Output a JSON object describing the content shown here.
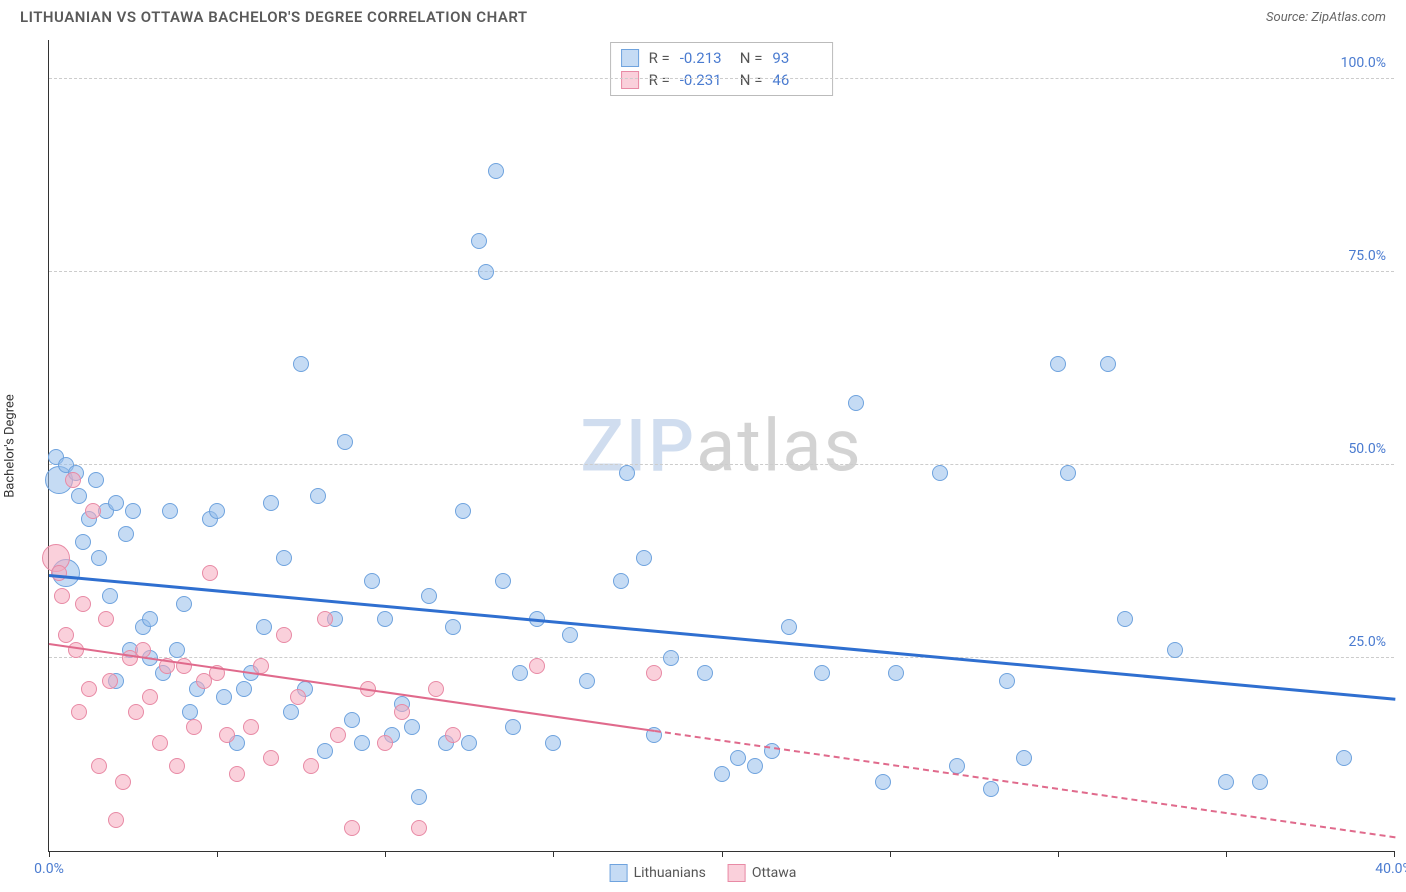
{
  "title": "LITHUANIAN VS OTTAWA BACHELOR'S DEGREE CORRELATION CHART",
  "source": "Source: ZipAtlas.com",
  "ylabel": "Bachelor's Degree",
  "watermark_a": "ZIP",
  "watermark_b": "atlas",
  "xlim": [
    0,
    40
  ],
  "ylim": [
    0,
    105
  ],
  "xtick_positions": [
    0,
    5,
    10,
    15,
    20,
    25,
    30,
    35,
    40
  ],
  "xtick_labels": {
    "0": "0.0%",
    "40": "40.0%"
  },
  "ytick_positions": [
    25,
    50,
    75,
    100
  ],
  "ytick_labels": {
    "25": "25.0%",
    "50": "50.0%",
    "75": "75.0%",
    "100": "100.0%"
  },
  "gridline_color": "#cccccc",
  "axis_color": "#333333",
  "label_color": "#4a7bd0",
  "series": [
    {
      "name": "Lithuanians",
      "fill": "rgba(150,190,235,0.55)",
      "stroke": "#6fa3de",
      "trend_color": "#2f6fd0",
      "trend_width": 3,
      "trend_y0": 36,
      "trend_y1": 20,
      "trend_x0": 0,
      "trend_x1": 40,
      "trend_dashed_from": null,
      "R": "-0.213",
      "N": "93",
      "marker_r": 8,
      "points": [
        [
          0.2,
          51
        ],
        [
          0.3,
          48,
          14
        ],
        [
          0.5,
          50
        ],
        [
          0.5,
          36,
          14
        ],
        [
          0.8,
          49
        ],
        [
          0.9,
          46
        ],
        [
          1.0,
          40
        ],
        [
          1.2,
          43
        ],
        [
          1.4,
          48
        ],
        [
          1.5,
          38
        ],
        [
          1.7,
          44
        ],
        [
          1.8,
          33
        ],
        [
          2.0,
          45
        ],
        [
          2.0,
          22
        ],
        [
          2.3,
          41
        ],
        [
          2.4,
          26
        ],
        [
          2.5,
          44
        ],
        [
          2.8,
          29
        ],
        [
          3.0,
          30
        ],
        [
          3.0,
          25
        ],
        [
          3.4,
          23
        ],
        [
          3.6,
          44
        ],
        [
          3.8,
          26
        ],
        [
          4.0,
          32
        ],
        [
          4.2,
          18
        ],
        [
          4.4,
          21
        ],
        [
          4.8,
          43
        ],
        [
          5.0,
          44
        ],
        [
          5.2,
          20
        ],
        [
          5.6,
          14
        ],
        [
          5.8,
          21
        ],
        [
          6.0,
          23
        ],
        [
          6.4,
          29
        ],
        [
          6.6,
          45
        ],
        [
          7.0,
          38
        ],
        [
          7.2,
          18
        ],
        [
          7.5,
          63
        ],
        [
          7.6,
          21
        ],
        [
          8.0,
          46
        ],
        [
          8.2,
          13
        ],
        [
          8.5,
          30
        ],
        [
          8.8,
          53
        ],
        [
          9.0,
          17
        ],
        [
          9.3,
          14
        ],
        [
          9.6,
          35
        ],
        [
          10.0,
          30
        ],
        [
          10.2,
          15
        ],
        [
          10.5,
          19
        ],
        [
          10.8,
          16
        ],
        [
          11.0,
          7
        ],
        [
          11.3,
          33
        ],
        [
          11.8,
          14
        ],
        [
          12.0,
          29
        ],
        [
          12.3,
          44
        ],
        [
          12.5,
          14
        ],
        [
          12.8,
          79
        ],
        [
          13.0,
          75
        ],
        [
          13.3,
          88
        ],
        [
          13.5,
          35
        ],
        [
          13.8,
          16
        ],
        [
          14.0,
          23
        ],
        [
          14.5,
          30
        ],
        [
          15.0,
          14
        ],
        [
          15.5,
          28
        ],
        [
          16.0,
          22
        ],
        [
          17.0,
          35
        ],
        [
          17.2,
          49
        ],
        [
          17.7,
          38
        ],
        [
          18.0,
          15
        ],
        [
          18.5,
          25
        ],
        [
          19.5,
          23
        ],
        [
          20.0,
          10
        ],
        [
          20.5,
          12
        ],
        [
          21.0,
          11
        ],
        [
          21.5,
          13
        ],
        [
          22.0,
          29
        ],
        [
          23.0,
          23
        ],
        [
          24.0,
          58
        ],
        [
          24.8,
          9
        ],
        [
          25.2,
          23
        ],
        [
          26.5,
          49
        ],
        [
          27.0,
          11
        ],
        [
          28.0,
          8
        ],
        [
          28.5,
          22
        ],
        [
          29.0,
          12
        ],
        [
          30.0,
          63
        ],
        [
          30.3,
          49
        ],
        [
          31.5,
          63
        ],
        [
          32.0,
          30
        ],
        [
          33.5,
          26
        ],
        [
          35.0,
          9
        ],
        [
          36.0,
          9
        ],
        [
          38.5,
          12
        ]
      ]
    },
    {
      "name": "Ottawa",
      "fill": "rgba(245,170,190,0.55)",
      "stroke": "#e88aa5",
      "trend_color": "#e06a8c",
      "trend_width": 2,
      "trend_y0": 27,
      "trend_y1": 2,
      "trend_x0": 0,
      "trend_x1": 40,
      "trend_dashed_from": 18,
      "R": "-0.231",
      "N": "46",
      "marker_r": 8,
      "points": [
        [
          0.2,
          38,
          14
        ],
        [
          0.3,
          36
        ],
        [
          0.4,
          33
        ],
        [
          0.5,
          28
        ],
        [
          0.7,
          48
        ],
        [
          0.8,
          26
        ],
        [
          0.9,
          18
        ],
        [
          1.0,
          32
        ],
        [
          1.2,
          21
        ],
        [
          1.3,
          44
        ],
        [
          1.5,
          11
        ],
        [
          1.7,
          30
        ],
        [
          1.8,
          22
        ],
        [
          2.0,
          4
        ],
        [
          2.2,
          9
        ],
        [
          2.4,
          25
        ],
        [
          2.6,
          18
        ],
        [
          2.8,
          26
        ],
        [
          3.0,
          20
        ],
        [
          3.3,
          14
        ],
        [
          3.5,
          24
        ],
        [
          3.8,
          11
        ],
        [
          4.0,
          24
        ],
        [
          4.3,
          16
        ],
        [
          4.6,
          22
        ],
        [
          4.8,
          36
        ],
        [
          5.0,
          23
        ],
        [
          5.3,
          15
        ],
        [
          5.6,
          10
        ],
        [
          6.0,
          16
        ],
        [
          6.3,
          24
        ],
        [
          6.6,
          12
        ],
        [
          7.0,
          28
        ],
        [
          7.4,
          20
        ],
        [
          7.8,
          11
        ],
        [
          8.2,
          30
        ],
        [
          8.6,
          15
        ],
        [
          9.0,
          3
        ],
        [
          9.5,
          21
        ],
        [
          10.0,
          14
        ],
        [
          10.5,
          18
        ],
        [
          11.0,
          3
        ],
        [
          11.5,
          21
        ],
        [
          12.0,
          15
        ],
        [
          14.5,
          24
        ],
        [
          18.0,
          23
        ]
      ]
    }
  ],
  "legend_labels": {
    "r": "R =",
    "n": "N ="
  }
}
